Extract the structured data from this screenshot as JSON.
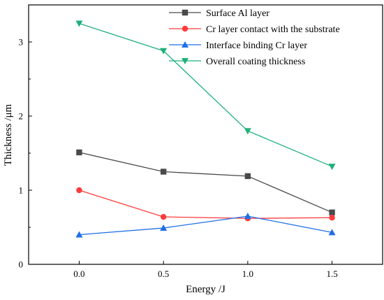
{
  "chart_data": {
    "type": "line",
    "xlabel": "Energy /J",
    "ylabel": "Thickness /μm",
    "x": [
      0.0,
      0.5,
      1.0,
      1.5
    ],
    "x_tick_labels": [
      "0.0",
      "0.5",
      "1.0",
      "1.5"
    ],
    "xlim": [
      -0.3,
      1.8
    ],
    "ylim": [
      0,
      3.5
    ],
    "y_ticks": [
      0,
      1,
      2,
      3
    ],
    "y_tick_labels": [
      "0",
      "1",
      "2",
      "3"
    ],
    "grid": false,
    "legend_position": "top-right",
    "series": [
      {
        "name": "Surface Al layer",
        "marker": "square",
        "color": "#4a4a4a",
        "values": [
          1.51,
          1.25,
          1.19,
          0.7
        ]
      },
      {
        "name": " Cr layer contact with the substrate",
        "marker": "circle",
        "color": "#ff3b3b",
        "values": [
          1.0,
          0.64,
          0.62,
          0.63
        ]
      },
      {
        "name": "Interface binding Cr layer",
        "marker": "triangle-up",
        "color": "#1f6fe6",
        "values": [
          0.4,
          0.49,
          0.65,
          0.43
        ]
      },
      {
        "name": "Overall coating thickness",
        "marker": "triangle-down",
        "color": "#20b07a",
        "values": [
          3.25,
          2.88,
          1.8,
          1.32
        ]
      }
    ]
  }
}
